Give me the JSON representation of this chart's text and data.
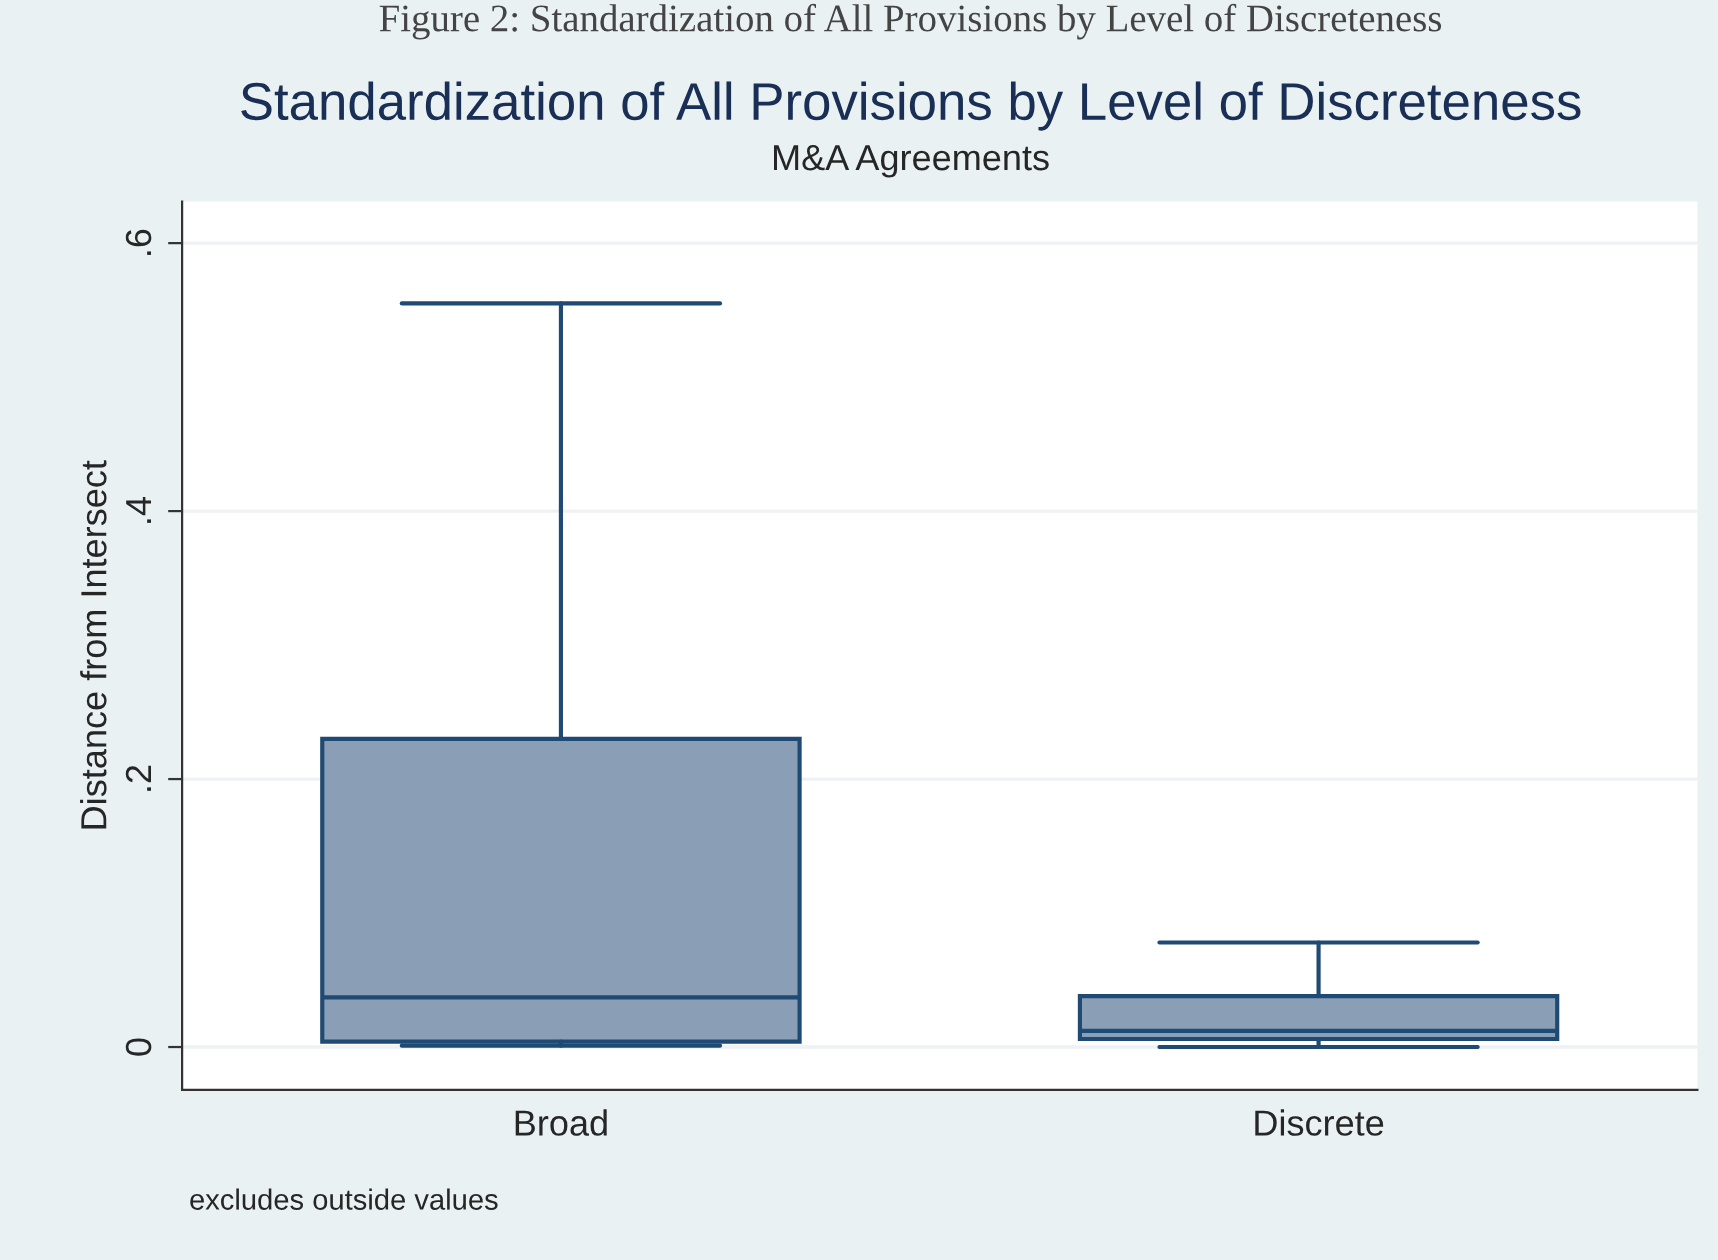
{
  "chart_data": {
    "type": "box",
    "title": "Standardization of All Provisions by Level of Discreteness",
    "subtitle": "M&A Agreements",
    "ylabel": "Distance from Intersect",
    "categories": [
      "Broad",
      "Discrete"
    ],
    "boxes": [
      {
        "low": 0.001,
        "q1": 0.004,
        "median": 0.037,
        "q3": 0.23,
        "high": 0.555
      },
      {
        "low": 0.0,
        "q1": 0.006,
        "median": 0.012,
        "q3": 0.038,
        "high": 0.078
      }
    ],
    "color": "#8a9fb6",
    "ylim": [
      -0.032,
      0.631
    ],
    "yticks": [
      {
        "value": 0,
        "label": "0"
      },
      {
        "value": 0.2,
        "label": ".2"
      },
      {
        "value": 0.4,
        "label": ".4"
      },
      {
        "value": 0.6,
        "label": ".6"
      }
    ],
    "grid": "y",
    "annotations": [
      "Figure 2: Standardization of All Provisions by Level of Discreteness",
      "excludes outside values"
    ]
  }
}
